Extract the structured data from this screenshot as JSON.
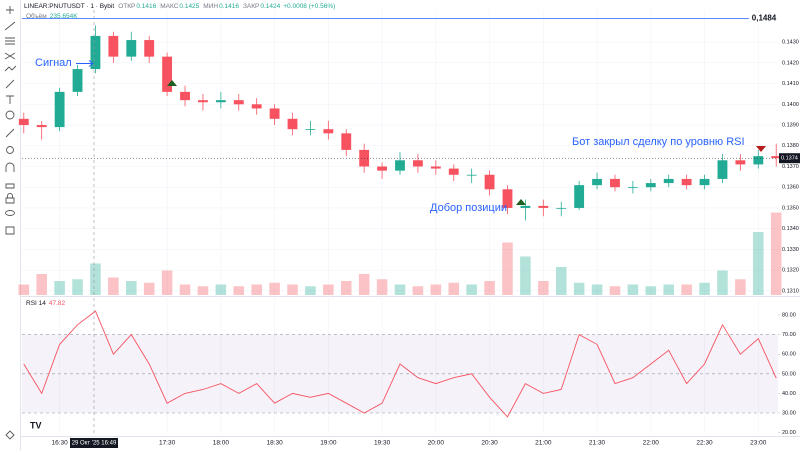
{
  "chart_data": [
    {
      "type": "candlestick",
      "title": "LINEAR:PNUTUSDT · 1 · Bybit",
      "ohlc_legend": [
        {
          "label": "ОТКР",
          "value": "0.1416"
        },
        {
          "label": "МАКС",
          "value": "0.1425"
        },
        {
          "label": "МИН",
          "value": "0.1416"
        },
        {
          "label": "ЗАКР",
          "value": "0.1424"
        }
      ],
      "change": "+0.0008 (+0.56%)",
      "volume_title": "Объём",
      "volume_label": "235.654K",
      "x": [
        "16:10",
        "16:20",
        "16:30",
        "16:40",
        "16:50",
        "17:00",
        "17:10",
        "17:20",
        "17:30",
        "17:40",
        "17:50",
        "18:00",
        "18:10",
        "18:20",
        "18:30",
        "18:40",
        "18:50",
        "19:00",
        "19:10",
        "19:20",
        "19:30",
        "19:40",
        "19:50",
        "20:00",
        "20:10",
        "20:20",
        "20:30",
        "20:40",
        "20:50",
        "21:00",
        "21:10",
        "21:20",
        "21:30",
        "21:40",
        "21:50",
        "22:00",
        "22:10",
        "22:20",
        "22:30",
        "22:40",
        "22:50",
        "23:00",
        "23:10"
      ],
      "open": [
        0.1393,
        0.139,
        0.1389,
        0.1406,
        0.1417,
        0.1433,
        0.1423,
        0.1431,
        0.1423,
        0.1406,
        0.1402,
        0.1401,
        0.1402,
        0.14,
        0.1398,
        0.1393,
        0.1388,
        0.1388,
        0.1386,
        0.1378,
        0.137,
        0.1368,
        0.1373,
        0.137,
        0.1369,
        0.1366,
        0.1366,
        0.1359,
        0.135,
        0.1351,
        0.135,
        0.135,
        0.1361,
        0.1364,
        0.136,
        0.136,
        0.1362,
        0.1364,
        0.1361,
        0.1364,
        0.1373,
        0.1371,
        0.1375
      ],
      "high": [
        0.1396,
        0.1392,
        0.1408,
        0.1419,
        0.1438,
        0.1435,
        0.1435,
        0.1433,
        0.1425,
        0.1409,
        0.1405,
        0.1406,
        0.1405,
        0.1403,
        0.14,
        0.1396,
        0.1392,
        0.1392,
        0.1388,
        0.1381,
        0.1372,
        0.1377,
        0.1376,
        0.1373,
        0.1371,
        0.1369,
        0.1368,
        0.1361,
        0.1354,
        0.1354,
        0.1353,
        0.1363,
        0.1367,
        0.1366,
        0.1363,
        0.1364,
        0.1366,
        0.1366,
        0.1366,
        0.1376,
        0.1376,
        0.1378,
        0.1381
      ],
      "low": [
        0.1386,
        0.1383,
        0.1387,
        0.1404,
        0.1415,
        0.142,
        0.1421,
        0.142,
        0.1404,
        0.1399,
        0.1397,
        0.1398,
        0.1397,
        0.1395,
        0.139,
        0.1385,
        0.1385,
        0.1383,
        0.1375,
        0.1367,
        0.1364,
        0.1366,
        0.1367,
        0.1366,
        0.1363,
        0.1362,
        0.1356,
        0.1347,
        0.1344,
        0.1346,
        0.1346,
        0.1349,
        0.1359,
        0.1358,
        0.1357,
        0.1358,
        0.136,
        0.1359,
        0.1359,
        0.1362,
        0.1368,
        0.1369,
        0.137
      ],
      "close": [
        0.139,
        0.1389,
        0.1406,
        0.1417,
        0.1433,
        0.1423,
        0.1431,
        0.1423,
        0.1406,
        0.1402,
        0.1401,
        0.1402,
        0.14,
        0.1398,
        0.1393,
        0.1388,
        0.1388,
        0.1386,
        0.1378,
        0.137,
        0.1368,
        0.1373,
        0.137,
        0.1369,
        0.1366,
        0.1366,
        0.1359,
        0.135,
        0.1351,
        0.135,
        0.135,
        0.1361,
        0.1364,
        0.136,
        0.136,
        0.1362,
        0.1364,
        0.1361,
        0.1364,
        0.1373,
        0.1371,
        0.1375,
        0.1374
      ],
      "volume": [
        30,
        60,
        40,
        45,
        90,
        50,
        40,
        35,
        70,
        30,
        25,
        30,
        25,
        30,
        35,
        30,
        25,
        30,
        40,
        60,
        45,
        30,
        25,
        30,
        35,
        30,
        40,
        150,
        110,
        40,
        80,
        35,
        30,
        25,
        30,
        25,
        30,
        30,
        35,
        70,
        45,
        180,
        235.654
      ],
      "up_color": "#22ab94",
      "down_color": "#f7525f",
      "xlim": [
        "16:09",
        "23:11"
      ],
      "xticks": [
        "16:30",
        "17:30",
        "18:00",
        "18:30",
        "19:00",
        "19:30",
        "20:00",
        "20:30",
        "21:00",
        "21:30",
        "22:00",
        "22:30",
        "23:00"
      ],
      "ylim": [
        0.1308,
        0.14455
      ],
      "yticks": [
        {
          "value": 0.131,
          "label": "0.1310"
        },
        {
          "value": 0.132,
          "label": "0.1320"
        },
        {
          "value": 0.133,
          "label": "0.1330"
        },
        {
          "value": 0.134,
          "label": "0.1340"
        },
        {
          "value": 0.135,
          "label": "0.1350"
        },
        {
          "value": 0.136,
          "label": "0.1360"
        },
        {
          "value": 0.137,
          "label": "0.1370"
        },
        {
          "value": 0.138,
          "label": "0.1380"
        },
        {
          "value": 0.139,
          "label": "0.1390"
        },
        {
          "value": 0.14,
          "label": "0.1400"
        },
        {
          "value": 0.141,
          "label": "0.1410"
        },
        {
          "value": 0.142,
          "label": "0.1420"
        },
        {
          "value": 0.143,
          "label": "0.1430"
        }
      ],
      "vlim": [
        0,
        300
      ],
      "hline_label": "0,1484",
      "crosshair_label": "29 Окт '25  16:49",
      "annotations": [
        "Сигнал",
        "Добор позиции",
        "Бот закрыл сделку по уровню RSI"
      ],
      "grid": true
    },
    {
      "type": "line",
      "title": "RSI 14",
      "value_label": "47.82",
      "values": [
        55,
        40,
        65,
        75,
        82,
        60,
        70,
        55,
        35,
        40,
        42,
        45,
        40,
        45,
        35,
        40,
        38,
        40,
        35,
        30,
        35,
        55,
        48,
        45,
        48,
        50,
        38,
        28,
        45,
        40,
        42,
        70,
        65,
        45,
        48,
        55,
        62,
        45,
        55,
        75,
        60,
        68,
        47.82
      ],
      "color": "#f7525f",
      "ylim": [
        20,
        88.7
      ],
      "yticks": [
        {
          "value": 20,
          "label": "20.00"
        },
        {
          "value": 30,
          "label": "30.00"
        },
        {
          "value": 40,
          "label": "40.00"
        },
        {
          "value": 50,
          "label": "50.00"
        },
        {
          "value": 60,
          "label": "60.00"
        },
        {
          "value": 70,
          "label": "70.00"
        },
        {
          "value": 80,
          "label": "80.00"
        }
      ],
      "band": [
        30,
        70
      ],
      "levels": [
        70,
        50,
        30
      ]
    }
  ]
}
